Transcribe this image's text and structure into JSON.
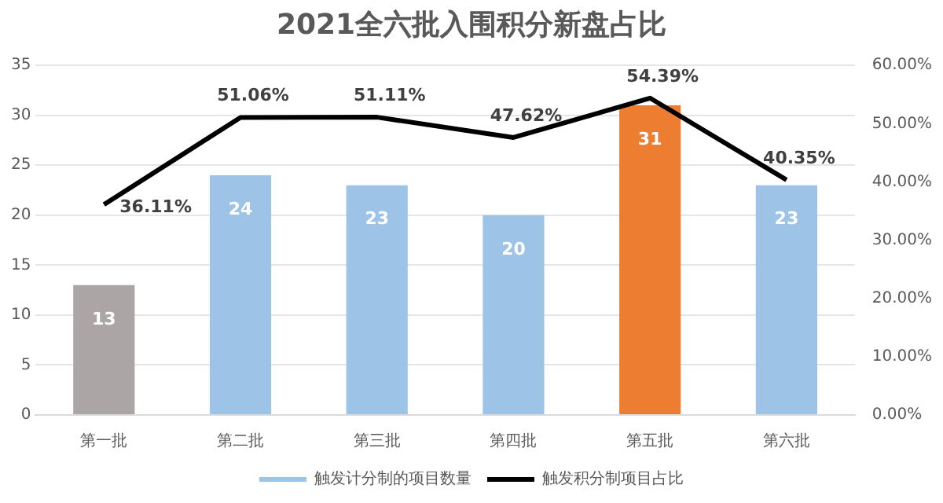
{
  "chart_data": {
    "type": "bar",
    "title": "2021全六批入围积分新盘占比",
    "categories": [
      "第一批",
      "第二批",
      "第三批",
      "第四批",
      "第五批",
      "第六批"
    ],
    "series": [
      {
        "name": "触发计分制的项目数量",
        "color": "#9dc3e6",
        "colors": [
          "#aba5a5",
          "#9dc3e6",
          "#9dc3e6",
          "#9dc3e6",
          "#ed7d31",
          "#9dc3e6"
        ],
        "values": [
          13,
          24,
          23,
          20,
          31,
          23
        ],
        "value_labels": [
          "13",
          "24",
          "23",
          "20",
          "31",
          "23"
        ]
      },
      {
        "name": "触发积分制项目占比",
        "type": "line",
        "axis": "y2",
        "color": "#000000",
        "values": [
          36.11,
          51.06,
          51.11,
          47.62,
          54.39,
          40.35
        ],
        "value_labels": [
          "36.11%",
          "51.06%",
          "51.11%",
          "47.62%",
          "54.39%",
          "40.35%"
        ]
      }
    ],
    "ylim": [
      0,
      35
    ],
    "yticks": [
      0,
      5,
      10,
      15,
      20,
      25,
      30,
      35
    ],
    "y2lim": [
      0,
      60
    ],
    "y2ticks": [
      {
        "value": 0,
        "label": "0.00%"
      },
      {
        "value": 10,
        "label": "10.00%"
      },
      {
        "value": 20,
        "label": "20.00%"
      },
      {
        "value": 30,
        "label": "30.00%"
      },
      {
        "value": 40,
        "label": "40.00%"
      },
      {
        "value": 50,
        "label": "50.00%"
      },
      {
        "value": 60,
        "label": "60.00%"
      }
    ],
    "grid": "y",
    "legend": "bottom",
    "marker": "none",
    "line_style": "solid"
  }
}
